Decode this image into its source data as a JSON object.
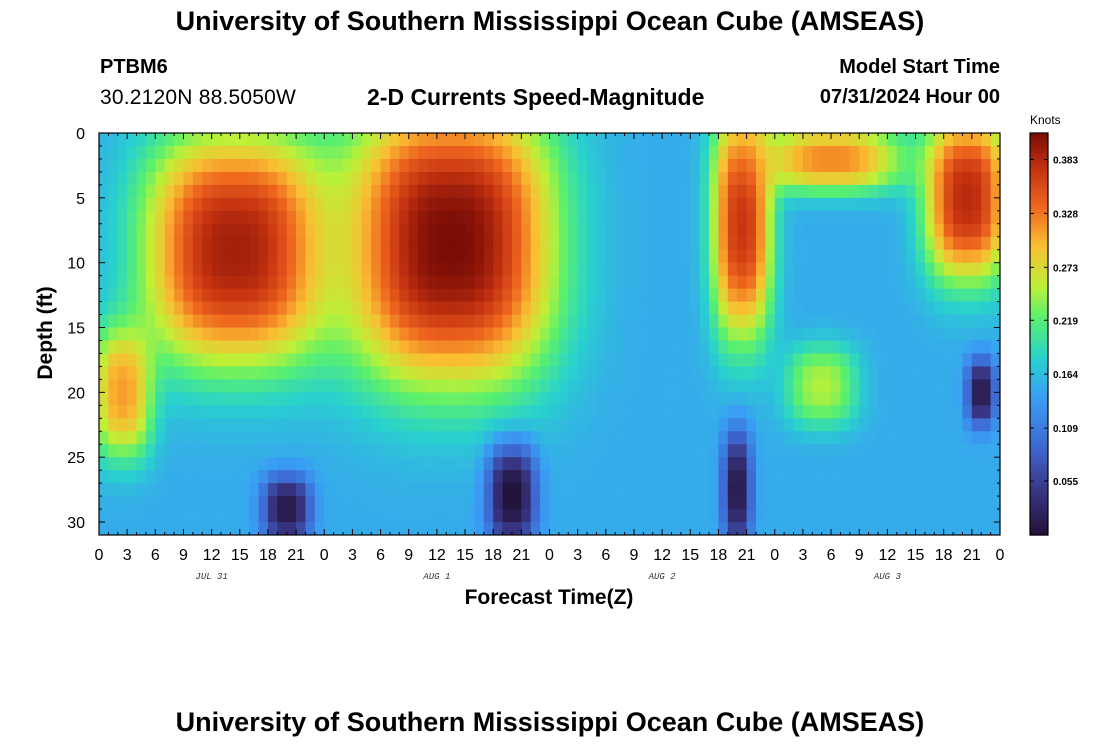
{
  "header": {
    "title": "University of Southern Mississippi Ocean Cube (AMSEAS)",
    "station_id": "PTBM6",
    "station_coords": "30.2120N  88.5050W",
    "plot_title": "2-D Currents Speed-Magnitude",
    "start_label": "Model Start Time",
    "start_value": "07/31/2024 Hour 00"
  },
  "footer": {
    "title": "University of Southern Mississippi Ocean Cube (AMSEAS)"
  },
  "chart_data": {
    "type": "heatmap",
    "title": "2-D Currents Speed-Magnitude",
    "xlabel": "Forecast Time(Z)",
    "ylabel": "Depth (ft)",
    "x_range_hours": [
      0,
      96
    ],
    "x_tick_labels": [
      "0",
      "3",
      "6",
      "9",
      "12",
      "15",
      "18",
      "21",
      "0",
      "3",
      "6",
      "9",
      "12",
      "15",
      "18",
      "21",
      "0",
      "3",
      "6",
      "9",
      "12",
      "15",
      "18",
      "21",
      "0",
      "3",
      "6",
      "9",
      "12",
      "15",
      "18",
      "21",
      "0"
    ],
    "date_labels": [
      {
        "hour": 12,
        "label": "JUL 31"
      },
      {
        "hour": 36,
        "label": "AUG 1"
      },
      {
        "hour": 60,
        "label": "AUG 2"
      },
      {
        "hour": 84,
        "label": "AUG 3"
      }
    ],
    "y_range_ft": [
      0,
      31
    ],
    "y_reversed": true,
    "y_ticks": [
      0,
      5,
      10,
      15,
      20,
      25,
      30
    ],
    "colorbar": {
      "units": "Knots",
      "range": [
        0.0,
        0.41
      ],
      "tick_values": [
        0.055,
        0.109,
        0.164,
        0.219,
        0.273,
        0.328,
        0.383
      ],
      "tick_labels": [
        "0.055",
        "0.109",
        "0.164",
        "0.219",
        "0.273",
        "0.328",
        "0.383"
      ]
    },
    "features": [
      {
        "name": "strong surface jet",
        "hours": [
          7,
          22
        ],
        "depth_ft": [
          2,
          16
        ],
        "speed": 0.39
      },
      {
        "name": "strong surface jet",
        "hours": [
          29,
          46
        ],
        "depth_ft": [
          0,
          17
        ],
        "speed": 0.41
      },
      {
        "name": "surface jet",
        "hours": [
          66,
          71
        ],
        "depth_ft": [
          0,
          14
        ],
        "speed": 0.37
      },
      {
        "name": "surface jet",
        "hours": [
          72,
          84
        ],
        "depth_ft": [
          0,
          4
        ],
        "speed": 0.32
      },
      {
        "name": "surface jet",
        "hours": [
          89,
          96
        ],
        "depth_ft": [
          0,
          10
        ],
        "speed": 0.38
      },
      {
        "name": "mid-depth maximum",
        "hours": [
          0,
          5
        ],
        "depth_ft": [
          16,
          24
        ],
        "speed": 0.31
      },
      {
        "name": "mid-depth maximum",
        "hours": [
          74,
          80
        ],
        "depth_ft": [
          17,
          22
        ],
        "speed": 0.25
      },
      {
        "name": "near-bottom minimum",
        "hours": [
          42,
          46
        ],
        "depth_ft": [
          25,
          31
        ],
        "speed": 0.0
      },
      {
        "name": "near-bottom minimum",
        "hours": [
          67,
          69
        ],
        "depth_ft": [
          24,
          31
        ],
        "speed": 0.01
      },
      {
        "name": "near-bottom minimum",
        "hours": [
          18,
          22
        ],
        "depth_ft": [
          27,
          31
        ],
        "speed": 0.01
      },
      {
        "name": "mid-depth minimum",
        "hours": [
          93,
          95
        ],
        "depth_ft": [
          18,
          22
        ],
        "speed": 0.01
      }
    ]
  }
}
